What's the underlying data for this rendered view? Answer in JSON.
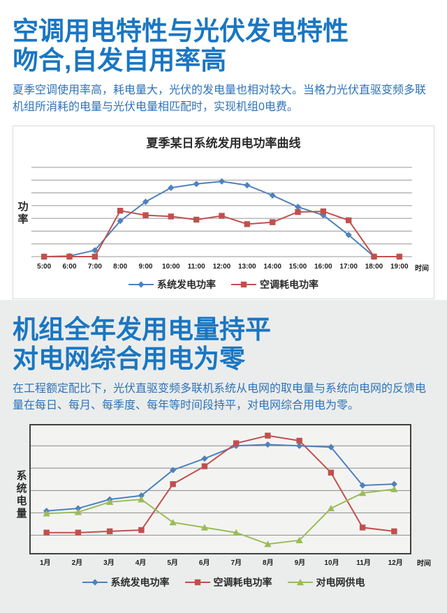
{
  "colors": {
    "title_blue": "#1a76c2",
    "body_blue": "#2e73b8",
    "section2_bg": "#ebedec",
    "series_blue": "#4f81bd",
    "series_red": "#c0504d",
    "series_green": "#9bbb59",
    "grid_gray": "#979797",
    "plot_border": "#404040"
  },
  "section1": {
    "title_line1": "空调用电特性与光伏发电特性",
    "title_line2": "吻合,自发自用率高",
    "description": "夏季空调使用率高，耗电量大，光伏的发电量也相对较大。当格力光伏直驱变频多联机组所消耗的电量与光伏电量相匹配时，实现机组0电费。"
  },
  "section2": {
    "title_line1": "机组全年发用电量持平",
    "title_line2": "对电网综合用电为零",
    "description": "在工程额定配比下，光伏直驱变频多联机系统从电网的取电量与系统向电网的反馈电量在每日、每月、每季度、每年等时间段持平，对电网综合用电为零。"
  },
  "chart_data": [
    {
      "type": "line",
      "title": "夏季某日系统发用电功率曲线",
      "ylabel": "功率",
      "xlabel": "时间",
      "categories": [
        "5:00",
        "6:00",
        "7:00",
        "8:00",
        "9:00",
        "10:00",
        "11:00",
        "12:00",
        "13:00",
        "14:00",
        "15:00",
        "16:00",
        "17:00",
        "18:00",
        "19:00"
      ],
      "ylim": [
        0,
        70
      ],
      "gridlines": [
        0,
        10,
        20,
        30,
        40,
        50,
        60,
        70
      ],
      "grid_on": true,
      "legend_position": "bottom",
      "series": [
        {
          "name": "系统发电功率",
          "marker": "diamond",
          "color": "#4f81bd",
          "values": [
            0,
            0.5,
            5,
            28,
            43,
            54,
            57,
            59,
            56,
            48,
            39,
            32.5,
            17,
            0,
            0
          ]
        },
        {
          "name": "空调耗电功率",
          "marker": "square",
          "color": "#c0504d",
          "values": [
            0,
            0,
            0,
            36,
            32.5,
            31.5,
            29,
            32,
            25.5,
            27,
            35,
            35.5,
            28.5,
            0,
            0
          ]
        }
      ]
    },
    {
      "type": "line",
      "title": "",
      "ylabel": "系统电量",
      "xlabel": "时间",
      "categories": [
        "1月",
        "2月",
        "3月",
        "4月",
        "5月",
        "6月",
        "7月",
        "8月",
        "9月",
        "10月",
        "11月",
        "12月"
      ],
      "ylim": [
        0,
        100
      ],
      "gridlines": [
        14,
        31.5,
        49,
        66.5,
        84
      ],
      "grid_on": true,
      "legend_position": "bottom",
      "series": [
        {
          "name": "系统发电功率",
          "marker": "diamond",
          "color": "#4f81bd",
          "values": [
            33,
            35,
            42,
            45,
            65,
            74,
            84,
            85,
            84,
            83,
            53,
            54
          ]
        },
        {
          "name": "空调耗电功率",
          "marker": "square",
          "color": "#c0504d",
          "values": [
            16,
            16,
            17,
            18,
            54,
            68,
            86,
            92,
            88,
            63,
            20,
            17
          ]
        },
        {
          "name": "对电网供电",
          "marker": "triangle",
          "color": "#9bbb59",
          "values": [
            31,
            32,
            40,
            42,
            24,
            20,
            16,
            7,
            10,
            35,
            47,
            50
          ]
        }
      ]
    }
  ]
}
